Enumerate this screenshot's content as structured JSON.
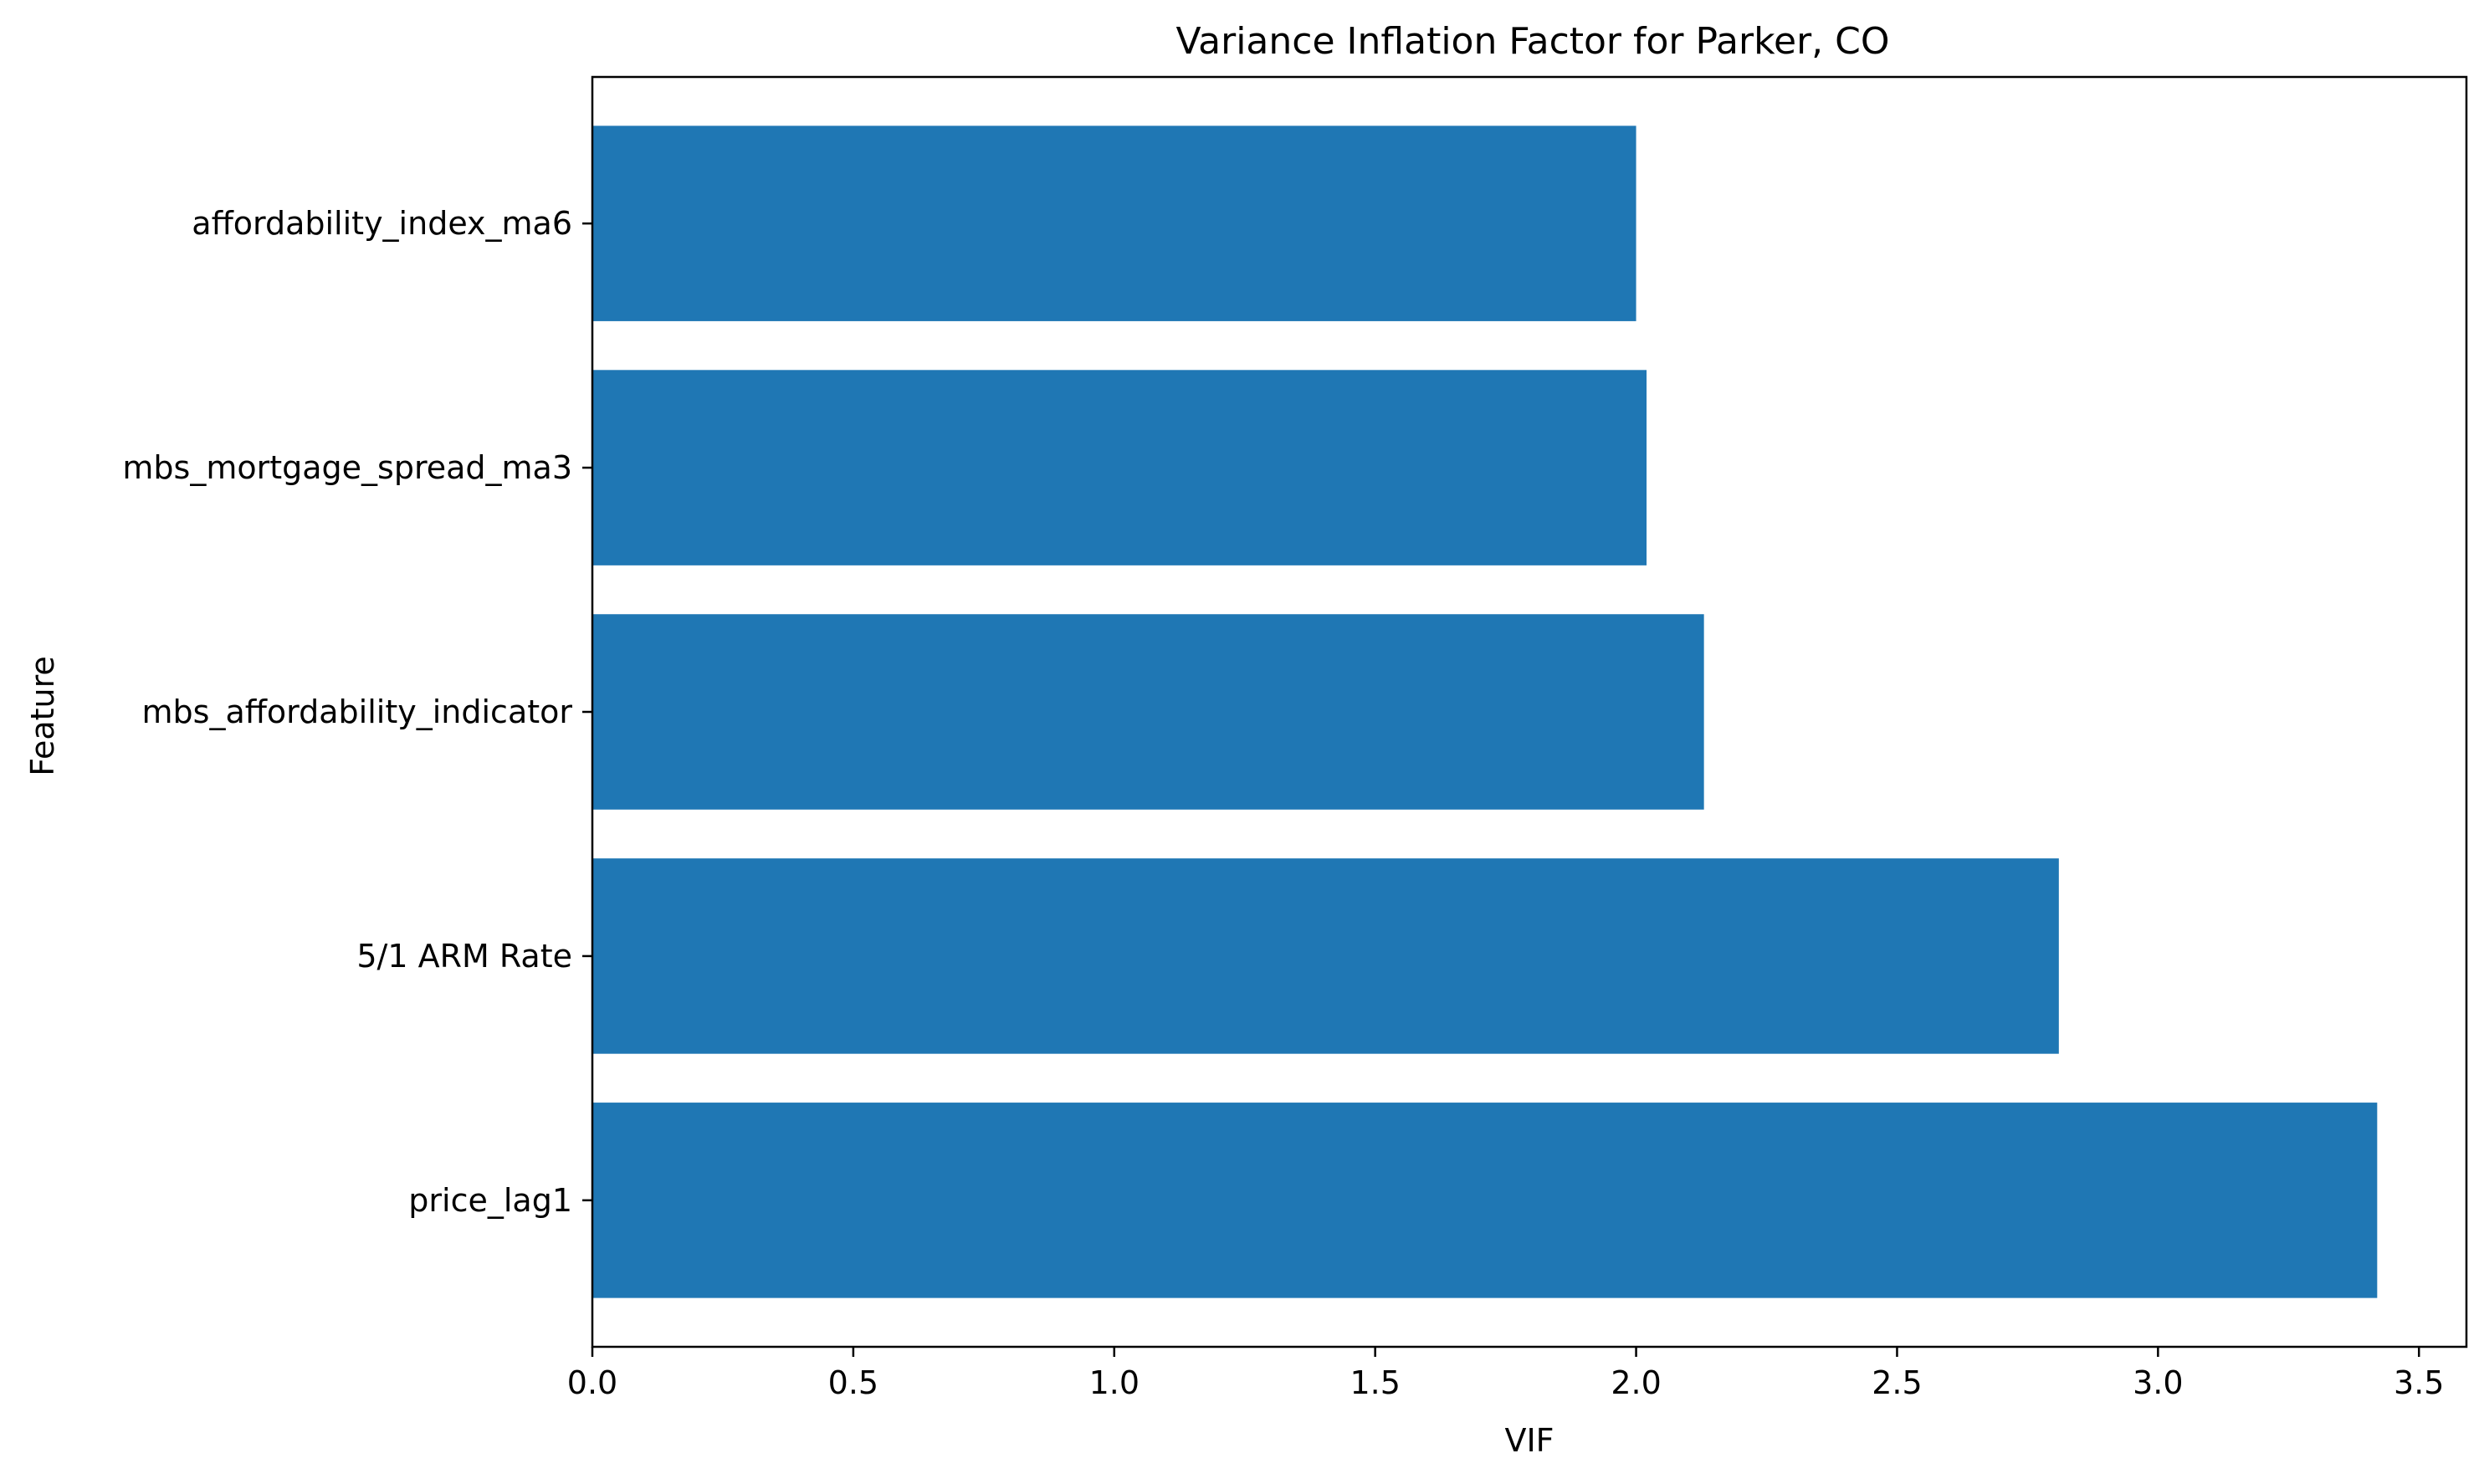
{
  "chart_data": {
    "type": "bar",
    "orientation": "horizontal",
    "title": "Variance Inflation Factor for Parker, CO",
    "xlabel": "VIF",
    "ylabel": "Feature",
    "categories": [
      "price_lag1",
      "5/1 ARM Rate",
      "mbs_affordability_indicator",
      "mbs_mortgage_spread_ma3",
      "affordability_index_ma6"
    ],
    "values": [
      3.42,
      2.81,
      2.13,
      2.02,
      2.0
    ],
    "xlim": [
      0,
      3.591
    ],
    "xticks": [
      0.0,
      0.5,
      1.0,
      1.5,
      2.0,
      2.5,
      3.0,
      3.5
    ],
    "xtick_labels": [
      "0.0",
      "0.5",
      "1.0",
      "1.5",
      "2.0",
      "2.5",
      "3.0",
      "3.5"
    ],
    "grid": false,
    "bar_color": "#1f77b4"
  }
}
